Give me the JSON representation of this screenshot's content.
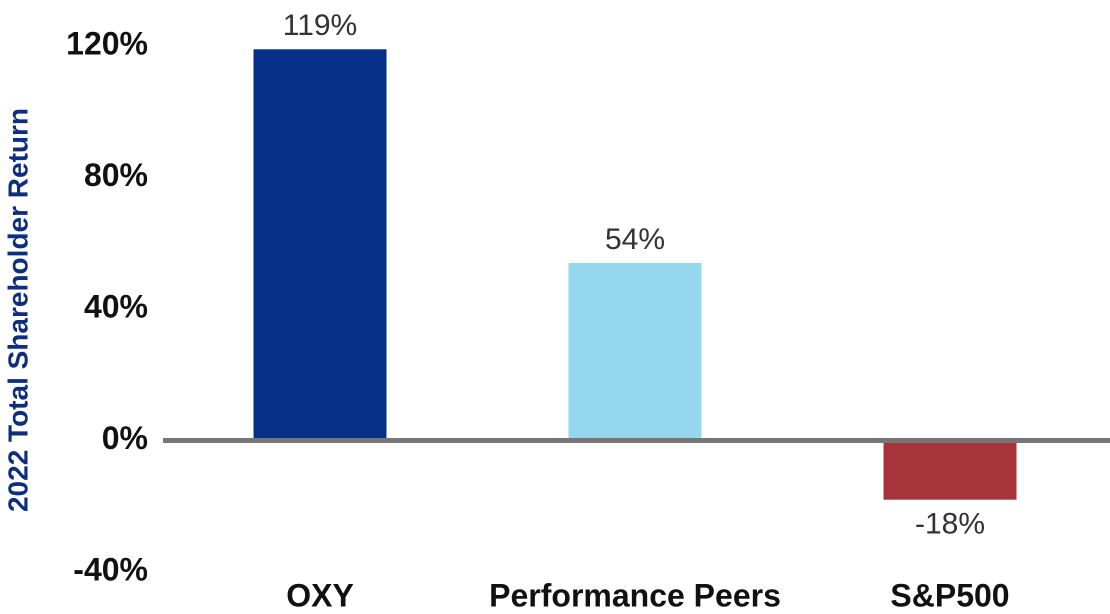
{
  "chart_data": {
    "type": "bar",
    "y_label": "2022 Total Shareholder Return",
    "categories": [
      "OXY",
      "Performance Peers",
      "S&P500"
    ],
    "values": [
      119,
      54,
      -18
    ],
    "value_labels": [
      "119%",
      "54%",
      "-18%"
    ],
    "colors": [
      "#062f87",
      "#95d8ee",
      "#a6343a"
    ],
    "ylim": [
      -40,
      120
    ],
    "yticks": [
      {
        "value": -40,
        "label": "-40%"
      },
      {
        "value": 0,
        "label": "0%"
      },
      {
        "value": 40,
        "label": "40%"
      },
      {
        "value": 80,
        "label": "80%"
      },
      {
        "value": 120,
        "label": "120%"
      }
    ]
  }
}
